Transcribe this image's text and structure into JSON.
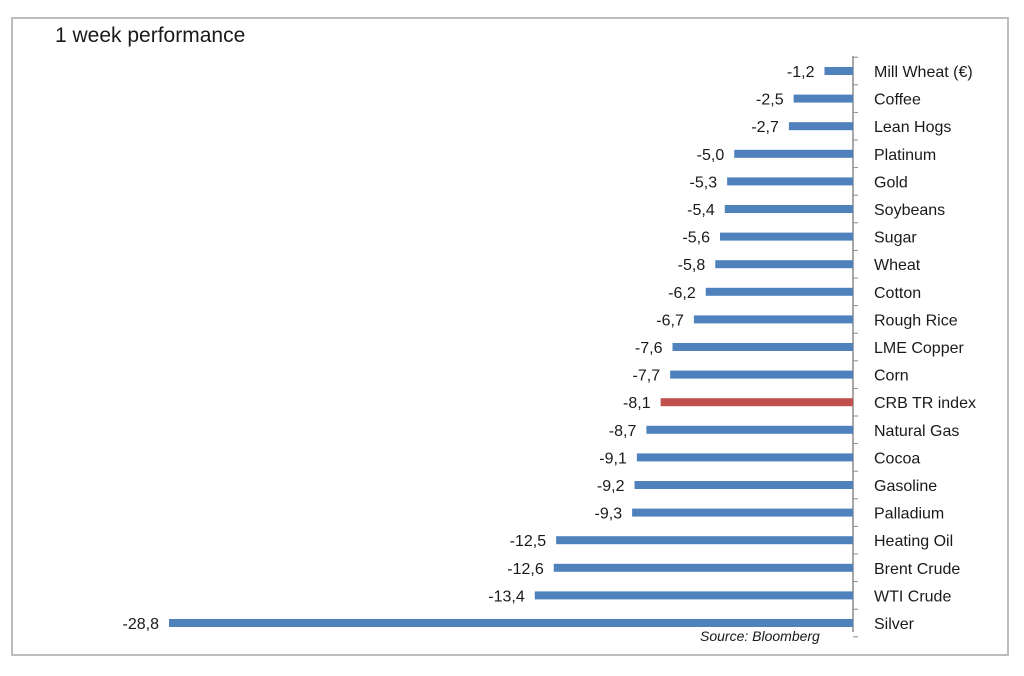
{
  "chart_data": {
    "type": "bar",
    "orientation": "horizontal",
    "title": "1 week performance",
    "source": "Source: Bloomberg",
    "xlabel": "",
    "ylabel": "",
    "xlim": [
      -30,
      0
    ],
    "categories": [
      "Mill Wheat (€)",
      "Coffee",
      "Lean Hogs",
      "Platinum",
      "Gold",
      "Soybeans",
      "Sugar",
      "Wheat",
      "Cotton",
      "Rough Rice",
      "LME Copper",
      "Corn",
      "CRB TR index",
      "Natural Gas",
      "Cocoa",
      "Gasoline",
      "Palladium",
      "Heating Oil",
      "Brent Crude",
      "WTI Crude",
      "Silver"
    ],
    "values": [
      -1.2,
      -2.5,
      -2.7,
      -5.0,
      -5.3,
      -5.4,
      -5.6,
      -5.8,
      -6.2,
      -6.7,
      -7.6,
      -7.7,
      -8.1,
      -8.7,
      -9.1,
      -9.2,
      -9.3,
      -12.5,
      -12.6,
      -13.4,
      -28.8
    ],
    "value_labels": [
      "-1,2",
      "-2,5",
      "-2,7",
      "-5,0",
      "-5,3",
      "-5,4",
      "-5,6",
      "-5,8",
      "-6,2",
      "-6,7",
      "-7,6",
      "-7,7",
      "-8,1",
      "-8,7",
      "-9,1",
      "-9,2",
      "-9,3",
      "-12,5",
      "-12,6",
      "-13,4",
      "-28,8"
    ],
    "highlight_category": "CRB TR index",
    "colors": {
      "bar": "#4f81bd",
      "highlight": "#c0504d",
      "axis": "#8c8c8c"
    },
    "grid": false
  }
}
